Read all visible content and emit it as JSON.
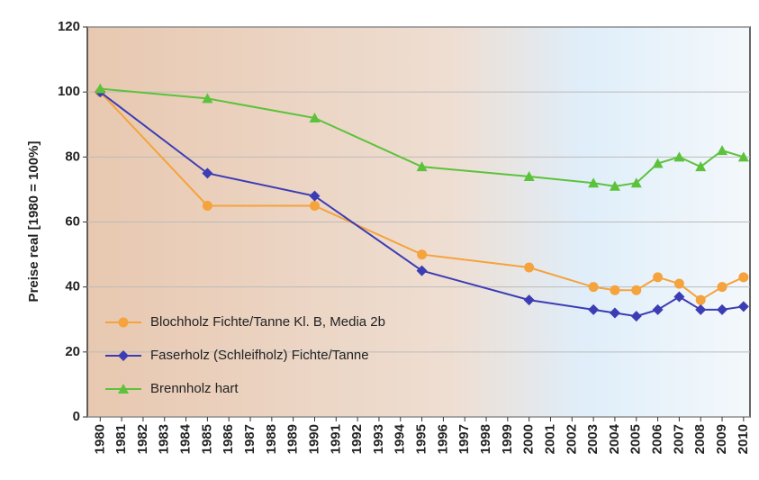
{
  "chart_data": {
    "type": "line",
    "y_label": "Preise real [1980 = 100%]",
    "xlim": [
      1979.4,
      2010.3
    ],
    "xticks": [
      1980,
      1981,
      1982,
      1983,
      1984,
      1985,
      1986,
      1987,
      1988,
      1989,
      1990,
      1991,
      1992,
      1993,
      1994,
      1995,
      1996,
      1997,
      1998,
      1999,
      2000,
      2001,
      2002,
      2003,
      2004,
      2005,
      2006,
      2007,
      2008,
      2009,
      2010
    ],
    "ylim": [
      0,
      120
    ],
    "yticks": [
      0,
      20,
      40,
      60,
      80,
      100,
      120
    ],
    "grid": true,
    "legend": "lower left",
    "series": [
      {
        "name": "Blochholz Fichte/Tanne Kl. B, Media 2b",
        "color": "#f5a33c",
        "marker": "circle",
        "x": [
          1980,
          1985,
          1990,
          1995,
          2000,
          2003,
          2004,
          2005,
          2006,
          2007,
          2008,
          2009,
          2010
        ],
        "values": [
          100,
          65,
          65,
          50,
          46,
          40,
          39,
          39,
          43,
          41,
          36,
          40,
          43
        ]
      },
      {
        "name": "Faserholz (Schleifholz) Fichte/Tanne",
        "color": "#3c3cb4",
        "marker": "diamond",
        "x": [
          1980,
          1985,
          1990,
          1995,
          2000,
          2003,
          2004,
          2005,
          2006,
          2007,
          2008,
          2009,
          2010
        ],
        "values": [
          100,
          75,
          68,
          45,
          36,
          33,
          32,
          31,
          33,
          37,
          33,
          33,
          34
        ]
      },
      {
        "name": "Brennholz hart",
        "color": "#5cc23c",
        "marker": "triangle",
        "x": [
          1980,
          1985,
          1990,
          1995,
          2000,
          2003,
          2004,
          2005,
          2006,
          2007,
          2008,
          2009,
          2010
        ],
        "values": [
          101,
          98,
          92,
          77,
          74,
          72,
          71,
          72,
          78,
          80,
          77,
          82,
          80
        ]
      }
    ]
  }
}
